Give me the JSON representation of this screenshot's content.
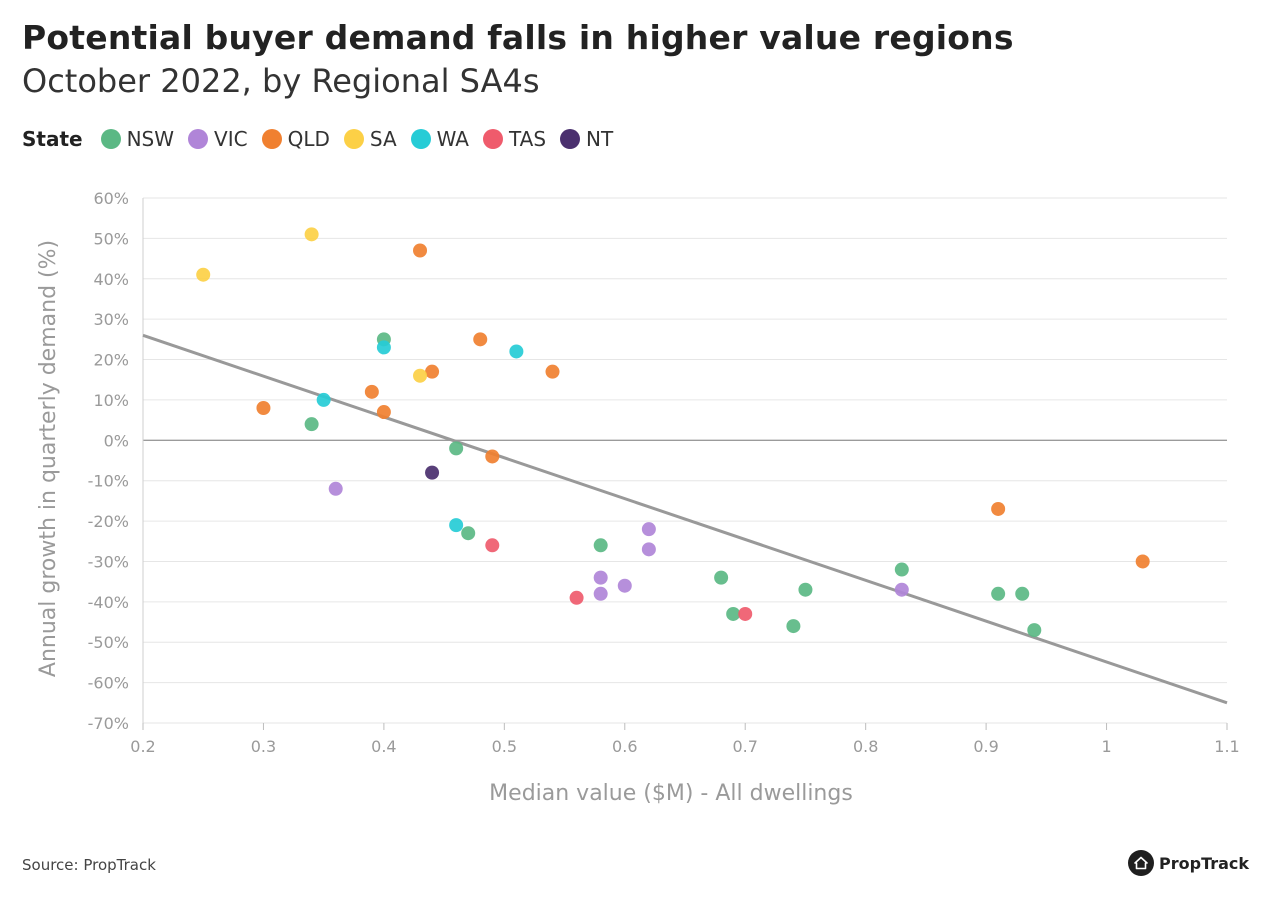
{
  "header": {
    "title": "Potential buyer demand falls in higher value regions",
    "subtitle": "October 2022, by Regional SA4s"
  },
  "legend": {
    "title": "State",
    "items": [
      {
        "label": "NSW",
        "color": "#5bb884"
      },
      {
        "label": "VIC",
        "color": "#b085d8"
      },
      {
        "label": "QLD",
        "color": "#f08030"
      },
      {
        "label": "SA",
        "color": "#fcd046"
      },
      {
        "label": "WA",
        "color": "#26ccd6"
      },
      {
        "label": "TAS",
        "color": "#ef5b6c"
      },
      {
        "label": "NT",
        "color": "#4a2f6e"
      }
    ]
  },
  "footer": {
    "source": "Source: PropTrack",
    "logo_text": "PropTrack"
  },
  "chart_data": {
    "type": "scatter",
    "xlabel": "Median value ($M) - All dwellings",
    "ylabel": "Annual growth in quarterly demand (%)",
    "xlim": [
      0.2,
      1.1
    ],
    "ylim": [
      -70,
      60
    ],
    "x_ticks": [
      "0.2",
      "0.3",
      "0.4",
      "0.5",
      "0.6",
      "0.7",
      "0.8",
      "0.9",
      "1",
      "1.1"
    ],
    "y_ticks": [
      "60%",
      "50%",
      "40%",
      "30%",
      "20%",
      "10%",
      "0%",
      "-10%",
      "-20%",
      "-30%",
      "-40%",
      "-50%",
      "-60%",
      "-70%"
    ],
    "grid": true,
    "trendline": {
      "x": [
        0.2,
        1.1
      ],
      "y": [
        26,
        -65
      ],
      "color": "#999999"
    },
    "series": [
      {
        "name": "NSW",
        "color": "#5bb884",
        "points": [
          [
            0.34,
            4
          ],
          [
            0.4,
            25
          ],
          [
            0.46,
            -2
          ],
          [
            0.47,
            -23
          ],
          [
            0.58,
            -26
          ],
          [
            0.68,
            -34
          ],
          [
            0.69,
            -43
          ],
          [
            0.74,
            -46
          ],
          [
            0.75,
            -37
          ],
          [
            0.83,
            -32
          ],
          [
            0.91,
            -38
          ],
          [
            0.93,
            -38
          ],
          [
            0.94,
            -47
          ]
        ]
      },
      {
        "name": "VIC",
        "color": "#b085d8",
        "points": [
          [
            0.36,
            -12
          ],
          [
            0.58,
            -34
          ],
          [
            0.58,
            -38
          ],
          [
            0.6,
            -36
          ],
          [
            0.62,
            -22
          ],
          [
            0.62,
            -27
          ],
          [
            0.83,
            -37
          ]
        ]
      },
      {
        "name": "QLD",
        "color": "#f08030",
        "points": [
          [
            0.3,
            8
          ],
          [
            0.39,
            12
          ],
          [
            0.4,
            7
          ],
          [
            0.43,
            47
          ],
          [
            0.44,
            17
          ],
          [
            0.48,
            25
          ],
          [
            0.49,
            -4
          ],
          [
            0.54,
            17
          ],
          [
            0.91,
            -17
          ],
          [
            1.03,
            -30
          ]
        ]
      },
      {
        "name": "SA",
        "color": "#fcd046",
        "points": [
          [
            0.25,
            41
          ],
          [
            0.34,
            51
          ],
          [
            0.43,
            16
          ]
        ]
      },
      {
        "name": "WA",
        "color": "#26ccd6",
        "points": [
          [
            0.35,
            10
          ],
          [
            0.4,
            23
          ],
          [
            0.46,
            -21
          ],
          [
            0.51,
            22
          ]
        ]
      },
      {
        "name": "TAS",
        "color": "#ef5b6c",
        "points": [
          [
            0.49,
            -26
          ],
          [
            0.56,
            -39
          ],
          [
            0.7,
            -43
          ]
        ]
      },
      {
        "name": "NT",
        "color": "#4a2f6e",
        "points": [
          [
            0.44,
            -8
          ]
        ]
      }
    ]
  }
}
